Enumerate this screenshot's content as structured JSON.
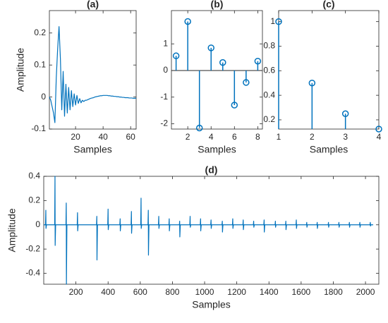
{
  "chart_data": [
    {
      "type": "line",
      "title": "(a)",
      "xlabel": "Samples",
      "ylabel": "Amplitude",
      "color": "#0072bd",
      "x": [
        1,
        2,
        3,
        4,
        5,
        6,
        7,
        8,
        9,
        10,
        11,
        12,
        13,
        14,
        15,
        16,
        17,
        18,
        19,
        20,
        21,
        22,
        23,
        24,
        25,
        26,
        27,
        28,
        29,
        30,
        31,
        32,
        33,
        34,
        35,
        36,
        37,
        38,
        39,
        40,
        41,
        42,
        43,
        44,
        45,
        46,
        47,
        48,
        49,
        50,
        51,
        52,
        53,
        54,
        55,
        56,
        57,
        58,
        59,
        60,
        61,
        62,
        63,
        64
      ],
      "values": [
        0,
        -0.01,
        -0.03,
        -0.05,
        -0.08,
        0.06,
        0.15,
        0.22,
        0.12,
        -0.04,
        0.08,
        -0.06,
        0.04,
        -0.05,
        0.03,
        -0.04,
        0.02,
        -0.03,
        0.01,
        -0.025,
        0.005,
        -0.02,
        -0.005,
        -0.018,
        -0.01,
        -0.014,
        -0.01,
        -0.01,
        -0.008,
        -0.006,
        -0.004,
        -0.003,
        -0.002,
        0,
        0.001,
        0.002,
        0.003,
        0.004,
        0.004,
        0.005,
        0.005,
        0.005,
        0.005,
        0.004,
        0.004,
        0.003,
        0.003,
        0.002,
        0.002,
        0.001,
        0.001,
        0,
        0,
        -0.001,
        -0.001,
        -0.002,
        -0.002,
        -0.002,
        -0.003,
        -0.003,
        -0.003,
        -0.004,
        -0.004,
        -0.004
      ],
      "xlim": [
        1,
        64
      ],
      "xticks": [
        20,
        40,
        60
      ],
      "ylim": [
        -0.1,
        0.27
      ],
      "yticks": [
        -0.1,
        0,
        0.1,
        0.2
      ]
    },
    {
      "type": "stem",
      "title": "(b)",
      "xlabel": "Samples",
      "color": "#0072bd",
      "x": [
        1,
        2,
        3,
        4,
        5,
        6,
        7,
        8
      ],
      "values": [
        0.55,
        1.84,
        -2.16,
        0.85,
        0.3,
        -1.3,
        -0.45,
        0.35
      ],
      "xlim": [
        0.6,
        8.4
      ],
      "xticks": [
        2,
        4,
        6,
        8
      ],
      "ylim": [
        -2.2,
        2.25
      ],
      "yticks": [
        -2,
        -1,
        0,
        1
      ]
    },
    {
      "type": "stem",
      "title": "(c)",
      "xlabel": "Samples",
      "color": "#0072bd",
      "x": [
        1,
        2,
        3,
        4
      ],
      "values": [
        1,
        0.5,
        0.25,
        0.125
      ],
      "xlim": [
        1,
        4
      ],
      "xticks": [
        1,
        2,
        3,
        4
      ],
      "ylim": [
        0.125,
        1.09
      ],
      "yticks": [
        0.2,
        0.4,
        0.6,
        0.8,
        1
      ]
    },
    {
      "type": "line",
      "title": "(d)",
      "xlabel": "Samples",
      "ylabel": "Amplitude",
      "color": "#0072bd",
      "x": [
        0,
        11,
        13,
        14,
        17,
        68,
        70,
        71,
        74,
        138,
        140,
        141,
        144,
        208,
        210,
        211,
        214,
        328,
        330,
        331,
        334,
        398,
        400,
        401,
        404,
        473,
        475,
        476,
        479,
        543,
        545,
        546,
        549,
        603,
        605,
        606,
        609,
        648,
        650,
        651,
        654,
        713,
        715,
        716,
        719,
        778,
        780,
        781,
        784,
        843,
        845,
        846,
        849,
        908,
        910,
        911,
        914,
        973,
        975,
        976,
        979,
        1038,
        1040,
        1041,
        1044,
        1108,
        1110,
        1111,
        1114,
        1173,
        1175,
        1176,
        1179,
        1238,
        1240,
        1241,
        1244,
        1303,
        1305,
        1306,
        1309,
        1368,
        1370,
        1371,
        1374,
        1438,
        1440,
        1441,
        1444,
        1503,
        1505,
        1506,
        1509,
        1568,
        1570,
        1571,
        1574,
        1633,
        1635,
        1636,
        1639,
        1698,
        1700,
        1701,
        1704,
        1768,
        1770,
        1771,
        1774,
        1833,
        1835,
        1836,
        1839,
        1898,
        1900,
        1901,
        1904,
        1963,
        1965,
        1966,
        1969,
        2028,
        2030,
        2031,
        2034,
        2048
      ],
      "values": [
        0,
        0,
        0.12,
        -0.03,
        0,
        0,
        0.4,
        -0.17,
        0,
        0,
        0.18,
        -0.49,
        0,
        0,
        0.1,
        -0.05,
        0,
        0,
        0.07,
        -0.29,
        0,
        0,
        0.13,
        -0.04,
        0,
        0,
        0.05,
        -0.05,
        0,
        0,
        0.11,
        -0.07,
        0,
        0,
        0.22,
        -0.03,
        0,
        0,
        0.12,
        -0.25,
        0,
        0,
        0.07,
        -0.03,
        0,
        0,
        0.05,
        -0.05,
        0,
        0,
        0.03,
        -0.1,
        0,
        0,
        0.07,
        -0.02,
        0,
        0,
        0.05,
        -0.05,
        0,
        0,
        0.04,
        -0.03,
        0,
        0,
        0.03,
        -0.06,
        0,
        0,
        0.05,
        -0.03,
        0,
        0,
        0.04,
        -0.04,
        0,
        0,
        0.03,
        -0.02,
        0,
        0,
        0.04,
        -0.06,
        0,
        0,
        0.03,
        -0.02,
        0,
        0,
        0.03,
        -0.04,
        0,
        0,
        0.04,
        -0.03,
        0,
        0,
        0.02,
        -0.02,
        0,
        0,
        0.02,
        -0.03,
        0,
        0,
        0.02,
        -0.02,
        0,
        0,
        0.02,
        -0.02,
        0,
        0,
        0.02,
        -0.02,
        0,
        0,
        0.02,
        -0.02,
        0,
        0,
        0.02,
        -0.01,
        0,
        0
      ],
      "xlim": [
        0,
        2083
      ],
      "xticks": [
        200,
        400,
        600,
        800,
        1000,
        1200,
        1400,
        1600,
        1800,
        2000
      ],
      "ylim": [
        -0.49,
        0.4
      ],
      "yticks": [
        -0.4,
        -0.2,
        0,
        0.2,
        0.4
      ]
    }
  ]
}
